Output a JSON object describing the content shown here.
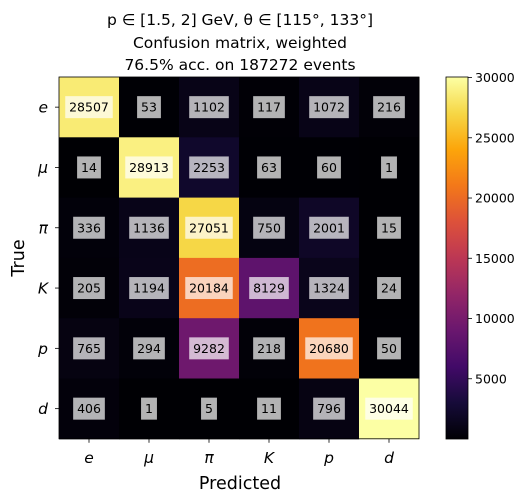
{
  "chart_data": {
    "type": "heatmap",
    "title_lines": [
      "p ∈ [1.5, 2] GeV, θ ∈ [115°, 133°]",
      "Confusion matrix, weighted",
      "76.5% acc. on 187272 events"
    ],
    "xlabel": "Predicted",
    "ylabel": "True",
    "x_categories": [
      "e",
      "μ",
      "π",
      "K",
      "p",
      "d"
    ],
    "y_categories": [
      "e",
      "μ",
      "π",
      "K",
      "p",
      "d"
    ],
    "values": [
      [
        28507,
        53,
        1102,
        117,
        1072,
        216
      ],
      [
        14,
        28913,
        2253,
        63,
        60,
        1
      ],
      [
        336,
        1136,
        27051,
        750,
        2001,
        15
      ],
      [
        205,
        1194,
        20184,
        8129,
        1324,
        24
      ],
      [
        765,
        294,
        9282,
        218,
        20680,
        50
      ],
      [
        406,
        1,
        5,
        11,
        796,
        30044
      ]
    ],
    "colorbar": {
      "colormap": "inferno",
      "range": [
        0,
        30044
      ],
      "ticks": [
        5000,
        10000,
        15000,
        20000,
        25000,
        30000
      ]
    },
    "grid": false
  }
}
